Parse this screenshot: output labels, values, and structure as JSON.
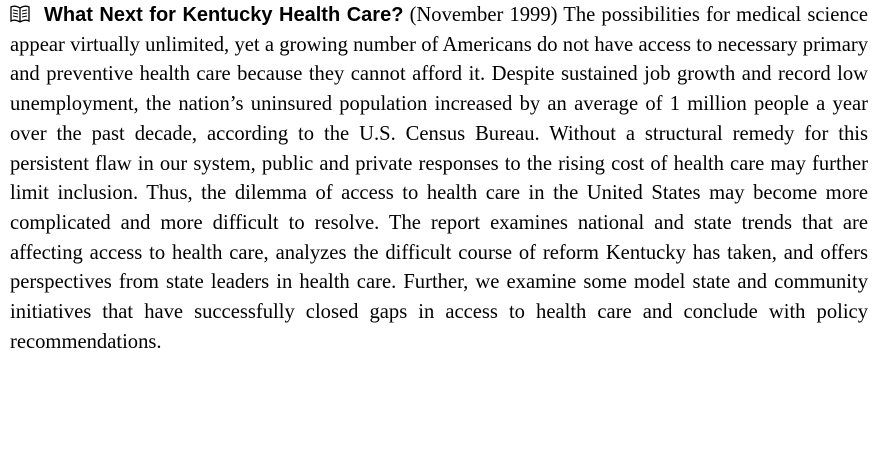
{
  "entry": {
    "title": "What Next for Kentucky Health Care?",
    "date": "(November 1999)",
    "body": "The possibilities for medical science appear virtually unlimited, yet a growing number of Americans do not have access to necessary primary and preventive health care because they cannot afford it. Despite sustained job growth and record low unemployment, the nation’s uninsured population increased by an average of 1 million people a year over the past decade, according to the U.S. Census Bureau. Without a structural remedy for this persistent flaw in our system, public and private responses to the rising cost of health care may further limit inclusion. Thus, the dilemma of access to health care in the United States may become more complicated and more difficult to resolve. The report examines national and state trends that are affecting access to health care, analyzes the difficult course of reform Kentucky has taken, and offers perspectives from state leaders in health care. Further, we examine some model state and community initiatives that have successfully closed gaps in access to health care and conclude with policy recommendations."
  }
}
